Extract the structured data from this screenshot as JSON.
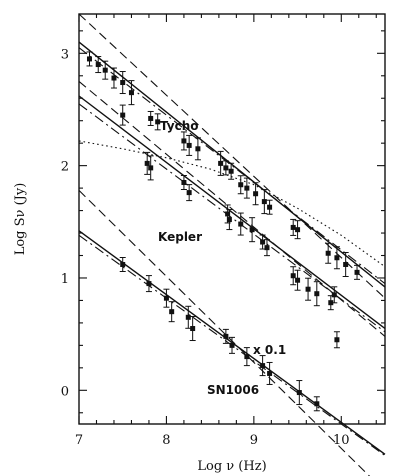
{
  "chart_data": {
    "type": "scatter",
    "title": "",
    "xlabel": "Log ν (Hz)",
    "ylabel": "Log Sν (Jy)",
    "xlim": [
      7,
      10.5
    ],
    "ylim": [
      -0.3,
      3.35
    ],
    "xticks": [
      7,
      8,
      9,
      10
    ],
    "yticks": [
      0,
      1,
      2,
      3
    ],
    "annotations": [
      "Tycho",
      "Kepler",
      "x 0.1",
      "SN1006"
    ],
    "series": [
      {
        "name": "Tycho",
        "points": [
          [
            7.12,
            2.95
          ],
          [
            7.22,
            2.9
          ],
          [
            7.3,
            2.85
          ],
          [
            7.4,
            2.78
          ],
          [
            7.5,
            2.74
          ],
          [
            7.6,
            2.65
          ],
          [
            7.82,
            2.42
          ],
          [
            7.9,
            2.39
          ],
          [
            8.2,
            2.22
          ],
          [
            8.26,
            2.18
          ],
          [
            8.36,
            2.15
          ],
          [
            8.62,
            2.02
          ],
          [
            8.68,
            1.98
          ],
          [
            8.74,
            1.95
          ],
          [
            8.85,
            1.83
          ],
          [
            8.92,
            1.8
          ],
          [
            9.02,
            1.75
          ],
          [
            9.12,
            1.68
          ],
          [
            9.18,
            1.63
          ],
          [
            9.45,
            1.45
          ],
          [
            9.5,
            1.43
          ],
          [
            9.85,
            1.22
          ],
          [
            9.95,
            1.18
          ],
          [
            10.05,
            1.12
          ],
          [
            10.18,
            1.05
          ]
        ],
        "fits": [
          {
            "style": "solid",
            "x": [
              7.0,
              10.5
            ],
            "y": [
              3.1,
              0.92
            ]
          },
          {
            "style": "dashed",
            "x": [
              7.0,
              10.5
            ],
            "y": [
              3.35,
              0.82
            ]
          },
          {
            "style": "dashdot",
            "x": [
              7.0,
              10.5
            ],
            "y": [
              3.05,
              0.95
            ]
          }
        ]
      },
      {
        "name": "Kepler",
        "points": [
          [
            7.5,
            2.45
          ],
          [
            7.78,
            2.02
          ],
          [
            7.82,
            1.98
          ],
          [
            8.2,
            1.85
          ],
          [
            8.26,
            1.76
          ],
          [
            8.7,
            1.57
          ],
          [
            8.72,
            1.52
          ],
          [
            8.85,
            1.48
          ],
          [
            8.98,
            1.43
          ],
          [
            9.1,
            1.32
          ],
          [
            9.15,
            1.27
          ],
          [
            9.45,
            1.02
          ],
          [
            9.5,
            0.98
          ],
          [
            9.62,
            0.9
          ],
          [
            9.72,
            0.86
          ],
          [
            9.88,
            0.78
          ],
          [
            9.92,
            0.85
          ]
        ],
        "fits": [
          {
            "style": "solid",
            "x": [
              7.0,
              10.5
            ],
            "y": [
              2.62,
              0.55
            ]
          },
          {
            "style": "dashed",
            "x": [
              7.0,
              10.5
            ],
            "y": [
              2.75,
              0.48
            ]
          },
          {
            "style": "dashdot",
            "x": [
              7.0,
              10.5
            ],
            "y": [
              2.55,
              0.52
            ]
          },
          {
            "style": "dotted",
            "x": [
              7.0,
              7.5,
              8.0,
              8.5,
              9.0,
              9.5,
              10.0,
              10.5
            ],
            "y": [
              2.22,
              2.15,
              2.07,
              1.97,
              1.83,
              1.62,
              1.38,
              1.1
            ]
          }
        ]
      },
      {
        "name": "SN1006 x 0.1",
        "points": [
          [
            7.5,
            1.12
          ],
          [
            7.8,
            0.95
          ],
          [
            8.0,
            0.82
          ],
          [
            8.06,
            0.7
          ],
          [
            8.25,
            0.65
          ],
          [
            8.3,
            0.55
          ],
          [
            8.68,
            0.48
          ],
          [
            8.75,
            0.4
          ],
          [
            8.92,
            0.3
          ],
          [
            9.1,
            0.22
          ],
          [
            9.18,
            0.15
          ],
          [
            9.52,
            -0.02
          ],
          [
            9.72,
            -0.12
          ],
          [
            9.95,
            0.45
          ]
        ],
        "fits": [
          {
            "style": "solid",
            "x": [
              7.0,
              10.5
            ],
            "y": [
              1.42,
              -0.57
            ]
          },
          {
            "style": "dashed",
            "x": [
              7.0,
              10.5
            ],
            "y": [
              1.78,
              -0.9
            ]
          },
          {
            "style": "dashdot",
            "x": [
              7.0,
              10.5
            ],
            "y": [
              1.38,
              -0.58
            ]
          }
        ]
      }
    ]
  }
}
